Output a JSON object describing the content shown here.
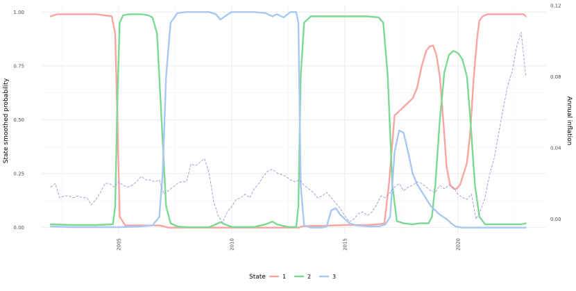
{
  "chart_data": {
    "type": "line",
    "ylabel": "State smoothed probability",
    "y2label": "Annual inflation",
    "xlim": [
      2001.6,
      2023.9
    ],
    "ylim": [
      -0.03,
      1.03
    ],
    "y2lim": [
      -0.0084,
      0.12
    ],
    "x_ticks": [
      2005,
      2010,
      2015,
      2020
    ],
    "x_tick_labels": [
      "2005",
      "2010",
      "2015",
      "2020"
    ],
    "y_ticks": [
      0,
      0.25,
      0.5,
      0.75,
      1
    ],
    "y_tick_labels": [
      "0.00",
      "0.25",
      "0.50",
      "0.75",
      "1.00"
    ],
    "y2_ticks": [
      0,
      0.04,
      0.08,
      0.12
    ],
    "y2_tick_labels": [
      "0.00",
      "0.04",
      "0.08",
      "0.12"
    ],
    "grid": true,
    "legend": {
      "title": "State",
      "position": "bottom",
      "entries": [
        "1",
        "2",
        "3"
      ]
    },
    "series": [
      {
        "name": "1",
        "color": "#F8A5A0",
        "x": [
          2002.0,
          2002.3,
          2003.0,
          2004.0,
          2004.7,
          2004.85,
          2004.95,
          2005.05,
          2005.3,
          2006.0,
          2006.5,
          2006.8,
          2007.2,
          2008.0,
          2010.0,
          2012.0,
          2012.8,
          2012.95,
          2013.1,
          2013.5,
          2014.0,
          2015.0,
          2016.0,
          2016.5,
          2016.75,
          2016.95,
          2017.2,
          2017.5,
          2017.8,
          2018.0,
          2018.2,
          2018.4,
          2018.6,
          2018.75,
          2018.9,
          2019.05,
          2019.2,
          2019.35,
          2019.5,
          2019.65,
          2019.8,
          2019.95,
          2020.1,
          2020.25,
          2020.4,
          2020.55,
          2020.7,
          2020.85,
          2020.95,
          2021.1,
          2021.3,
          2021.5,
          2022.0,
          2022.6,
          2022.9,
          2023.0
        ],
        "y": [
          0.98,
          0.99,
          0.99,
          0.99,
          0.98,
          0.9,
          0.5,
          0.05,
          0.01,
          0.01,
          0.01,
          0.01,
          0.0,
          0.0,
          0.0,
          0.0,
          0.0,
          0.0,
          0.005,
          0.008,
          0.008,
          0.012,
          0.012,
          0.015,
          0.02,
          0.2,
          0.52,
          0.55,
          0.58,
          0.6,
          0.65,
          0.75,
          0.82,
          0.84,
          0.845,
          0.8,
          0.7,
          0.5,
          0.28,
          0.2,
          0.18,
          0.18,
          0.2,
          0.25,
          0.3,
          0.45,
          0.7,
          0.88,
          0.96,
          0.98,
          0.99,
          0.99,
          0.99,
          0.99,
          0.99,
          0.98
        ]
      },
      {
        "name": "2",
        "color": "#7CD992",
        "x": [
          2002.0,
          2003.0,
          2004.0,
          2004.75,
          2004.85,
          2004.95,
          2005.05,
          2005.2,
          2005.5,
          2006.0,
          2006.3,
          2006.5,
          2006.7,
          2006.9,
          2007.1,
          2007.3,
          2007.6,
          2008.0,
          2009.0,
          2009.3,
          2009.5,
          2009.7,
          2010.0,
          2011.0,
          2011.5,
          2011.8,
          2012.0,
          2012.5,
          2012.85,
          2012.95,
          2013.05,
          2013.2,
          2013.5,
          2014.0,
          2015.0,
          2016.0,
          2016.5,
          2016.7,
          2016.9,
          2017.1,
          2017.3,
          2017.6,
          2018.0,
          2018.3,
          2018.7,
          2018.85,
          2019.0,
          2019.2,
          2019.4,
          2019.6,
          2019.8,
          2020.0,
          2020.2,
          2020.4,
          2020.55,
          2020.75,
          2020.95,
          2021.2,
          2022.0,
          2022.8,
          2023.0
        ],
        "y": [
          0.015,
          0.012,
          0.012,
          0.015,
          0.1,
          0.6,
          0.95,
          0.985,
          0.99,
          0.99,
          0.985,
          0.975,
          0.9,
          0.5,
          0.1,
          0.02,
          0.005,
          0.002,
          0.002,
          0.015,
          0.025,
          0.015,
          0.003,
          0.003,
          0.015,
          0.028,
          0.015,
          0.003,
          0.003,
          0.1,
          0.7,
          0.95,
          0.98,
          0.98,
          0.98,
          0.98,
          0.975,
          0.95,
          0.7,
          0.2,
          0.03,
          0.02,
          0.015,
          0.02,
          0.02,
          0.05,
          0.2,
          0.5,
          0.72,
          0.8,
          0.82,
          0.81,
          0.78,
          0.7,
          0.5,
          0.2,
          0.05,
          0.015,
          0.015,
          0.015,
          0.02
        ]
      },
      {
        "name": "3",
        "color": "#A6C8F3",
        "x": [
          2002.0,
          2003.0,
          2004.0,
          2005.0,
          2006.0,
          2006.5,
          2006.8,
          2006.95,
          2007.1,
          2007.3,
          2007.6,
          2008.0,
          2009.0,
          2009.3,
          2009.5,
          2009.7,
          2010.0,
          2010.5,
          2011.0,
          2011.5,
          2011.8,
          2012.0,
          2012.3,
          2012.6,
          2012.85,
          2012.95,
          2013.05,
          2013.2,
          2013.5,
          2013.7,
          2013.85,
          2014.0,
          2014.2,
          2014.4,
          2014.6,
          2014.8,
          2015.0,
          2015.2,
          2015.5,
          2016.0,
          2016.5,
          2016.8,
          2017.0,
          2017.2,
          2017.4,
          2017.6,
          2017.8,
          2018.0,
          2018.2,
          2018.5,
          2018.8,
          2019.0,
          2019.2,
          2019.5,
          2019.7,
          2019.9,
          2020.2,
          2020.6,
          2021.0,
          2022.0,
          2023.0
        ],
        "y": [
          0.005,
          0.002,
          0.002,
          0.002,
          0.005,
          0.01,
          0.05,
          0.25,
          0.7,
          0.95,
          0.995,
          1.0,
          1.0,
          0.99,
          0.965,
          0.98,
          1.0,
          1.0,
          1.0,
          0.995,
          0.98,
          0.99,
          0.975,
          1.0,
          1.0,
          0.95,
          0.2,
          0.01,
          0.0,
          0.0,
          0.0,
          0.0,
          0.005,
          0.08,
          0.09,
          0.06,
          0.04,
          0.02,
          0.01,
          0.005,
          0.005,
          0.015,
          0.05,
          0.35,
          0.45,
          0.44,
          0.35,
          0.25,
          0.2,
          0.15,
          0.1,
          0.08,
          0.06,
          0.04,
          0.02,
          0.005,
          0.0,
          0.0,
          0.0,
          0.0,
          0.0
        ]
      },
      {
        "name": "Annual inflation",
        "color": "#9C98D6",
        "dashed": true,
        "axis": "right",
        "x": [
          2002.0,
          2002.2,
          2002.4,
          2002.6,
          2002.8,
          2003.0,
          2003.2,
          2003.4,
          2003.6,
          2003.8,
          2004.0,
          2004.2,
          2004.4,
          2004.6,
          2004.8,
          2005.0,
          2005.2,
          2005.4,
          2005.6,
          2005.8,
          2006.0,
          2006.2,
          2006.4,
          2006.6,
          2006.8,
          2007.0,
          2007.2,
          2007.4,
          2007.6,
          2007.8,
          2008.0,
          2008.2,
          2008.4,
          2008.6,
          2008.8,
          2009.0,
          2009.2,
          2009.4,
          2009.6,
          2009.8,
          2010.0,
          2010.2,
          2010.4,
          2010.6,
          2010.8,
          2011.0,
          2011.2,
          2011.4,
          2011.6,
          2011.8,
          2012.0,
          2012.2,
          2012.4,
          2012.6,
          2012.8,
          2013.0,
          2013.2,
          2013.4,
          2013.6,
          2013.8,
          2014.0,
          2014.2,
          2014.4,
          2014.6,
          2014.8,
          2015.0,
          2015.2,
          2015.4,
          2015.6,
          2015.8,
          2016.0,
          2016.2,
          2016.4,
          2016.6,
          2016.8,
          2017.0,
          2017.2,
          2017.4,
          2017.6,
          2017.8,
          2018.0,
          2018.2,
          2018.4,
          2018.6,
          2018.8,
          2019.0,
          2019.2,
          2019.4,
          2019.6,
          2019.8,
          2020.0,
          2020.2,
          2020.4,
          2020.6,
          2020.8,
          2021.0,
          2021.2,
          2021.4,
          2021.6,
          2021.8,
          2022.0,
          2022.2,
          2022.4,
          2022.6,
          2022.8,
          2023.0
        ],
        "y": [
          0.018,
          0.02,
          0.012,
          0.013,
          0.013,
          0.012,
          0.013,
          0.012,
          0.012,
          0.008,
          0.011,
          0.015,
          0.02,
          0.02,
          0.018,
          0.021,
          0.019,
          0.018,
          0.019,
          0.021,
          0.024,
          0.022,
          0.022,
          0.021,
          0.022,
          0.014,
          0.016,
          0.018,
          0.02,
          0.021,
          0.021,
          0.031,
          0.03,
          0.032,
          0.034,
          0.026,
          0.01,
          0.002,
          -0.002,
          0.004,
          0.007,
          0.011,
          0.012,
          0.014,
          0.012,
          0.017,
          0.02,
          0.024,
          0.027,
          0.028,
          0.026,
          0.025,
          0.024,
          0.022,
          0.021,
          0.022,
          0.019,
          0.017,
          0.015,
          0.012,
          0.013,
          0.015,
          0.012,
          0.009,
          0.006,
          0.002,
          -0.0015,
          0.0,
          0.003,
          0.004,
          0.002,
          0.004,
          0.008,
          0.013,
          0.012,
          0.015,
          0.018,
          0.02,
          0.016,
          0.018,
          0.019,
          0.021,
          0.02,
          0.018,
          0.016,
          0.015,
          0.019,
          0.017,
          0.019,
          0.018,
          0.014,
          0.012,
          0.011,
          0.014,
          0.0,
          0.005,
          0.012,
          0.025,
          0.034,
          0.048,
          0.062,
          0.075,
          0.083,
          0.097,
          0.105,
          0.08
        ]
      }
    ]
  }
}
